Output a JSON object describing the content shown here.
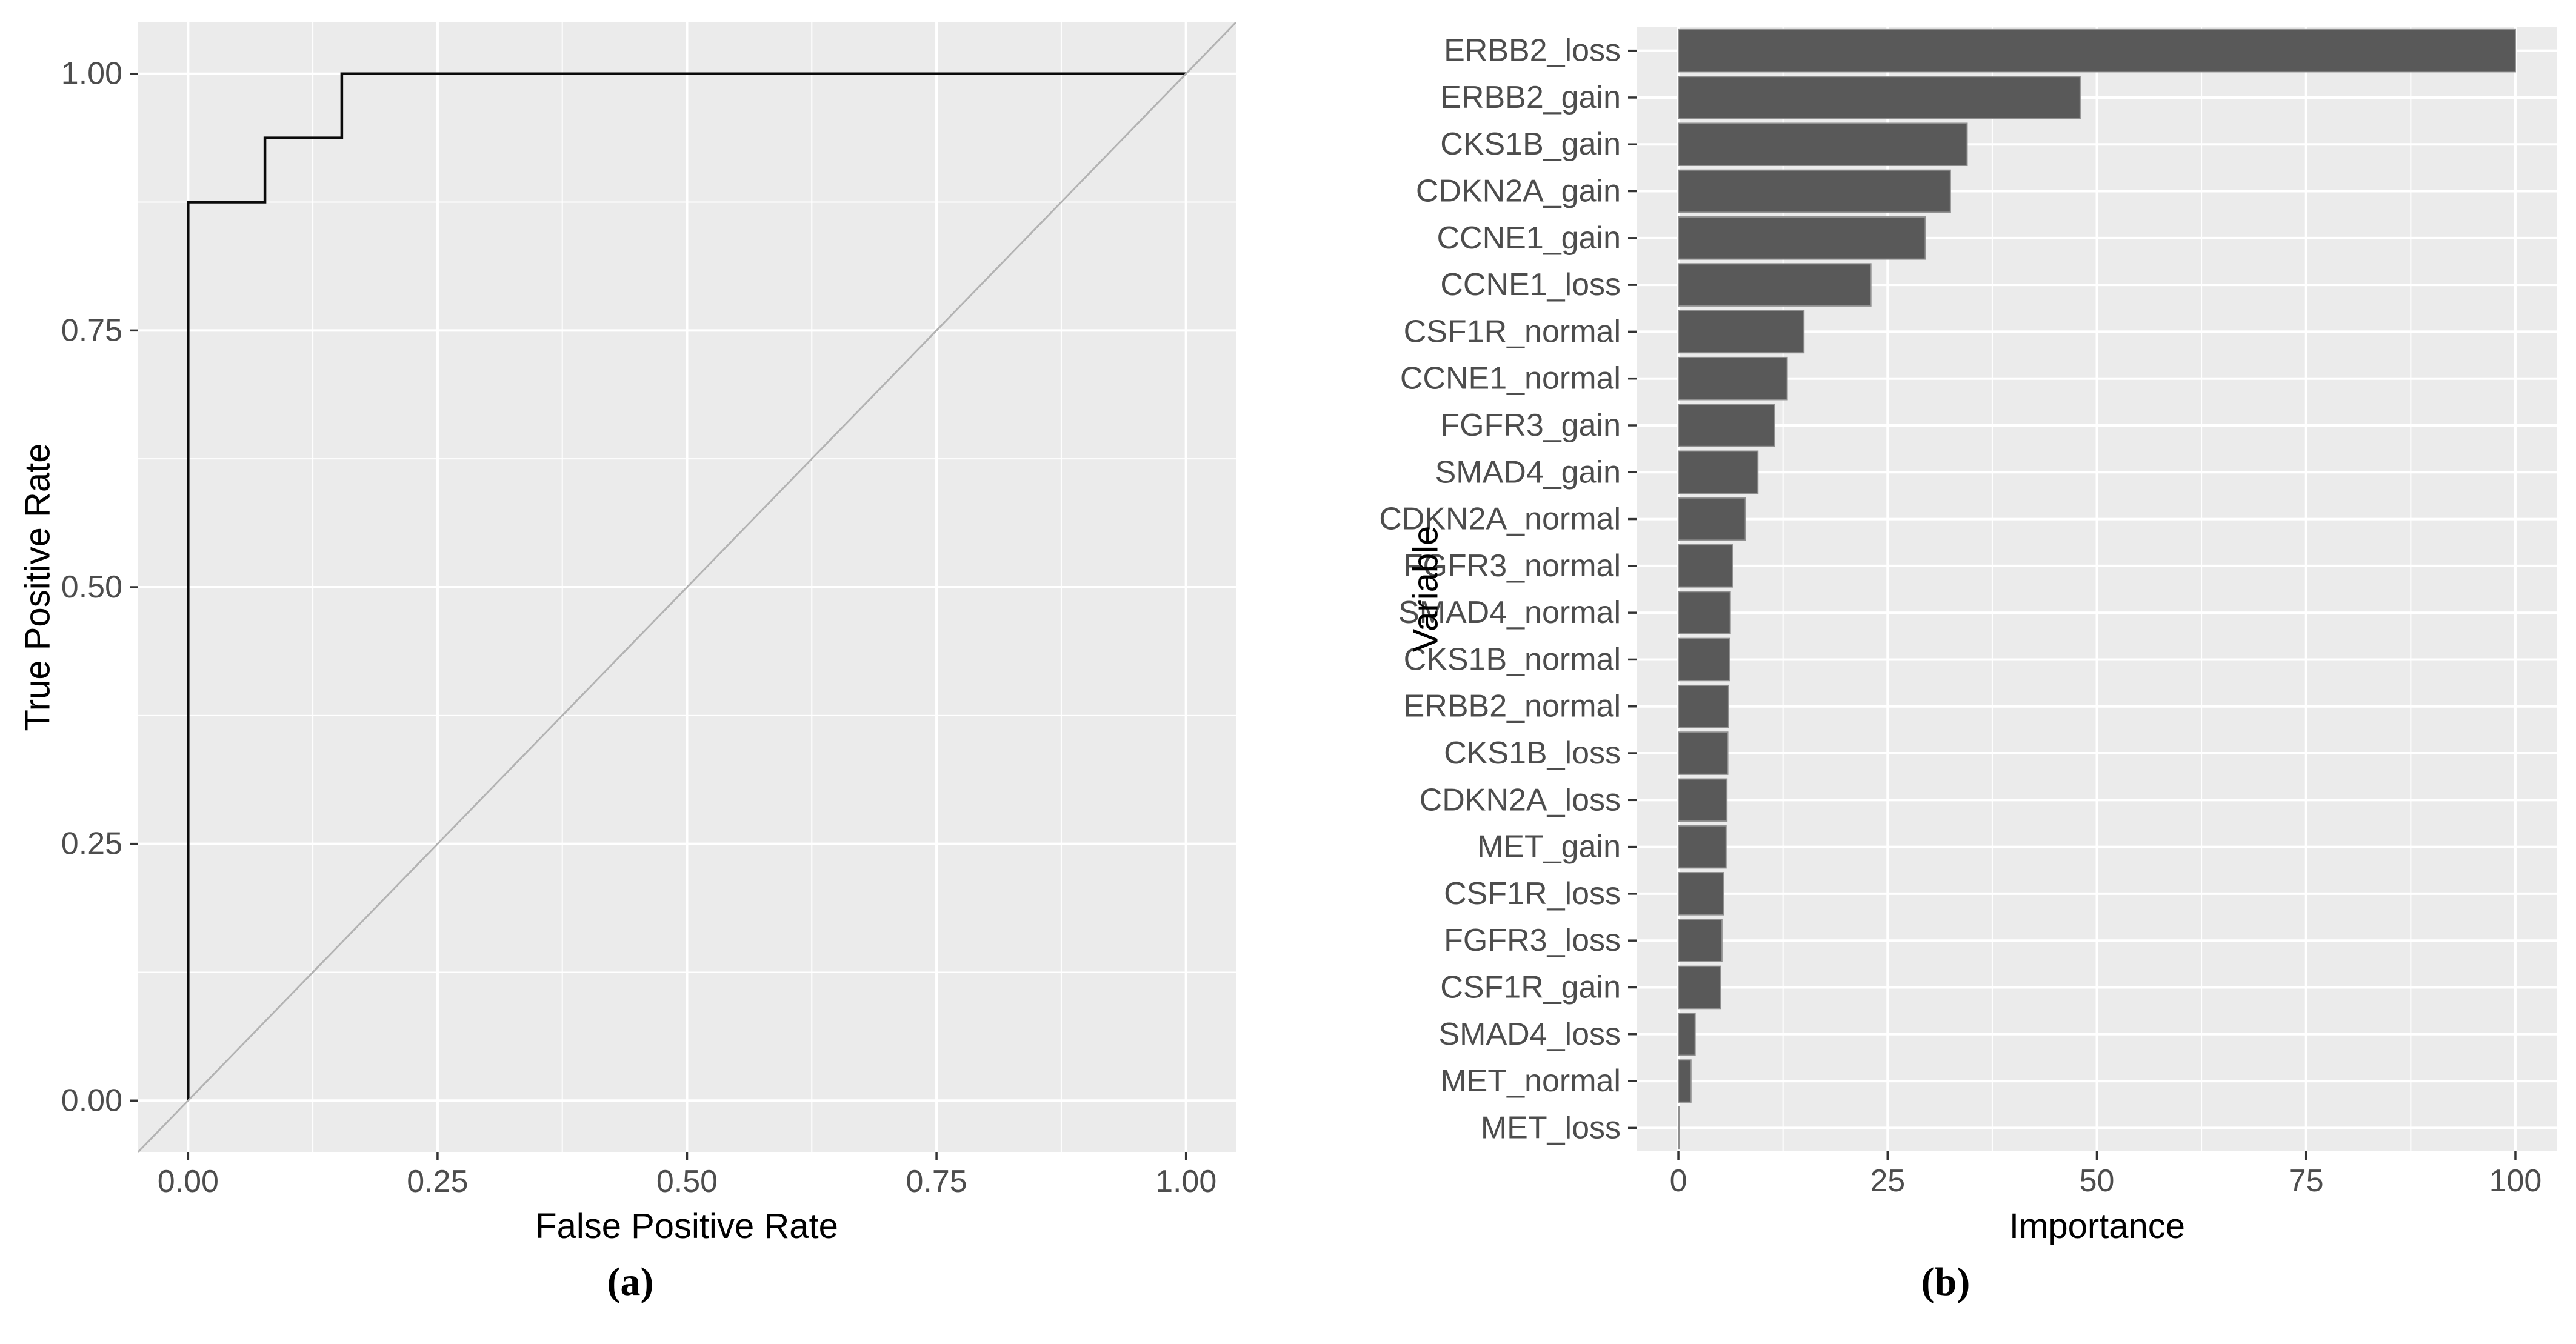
{
  "figure": {
    "caption_a": "(a)",
    "caption_b": "(b)"
  },
  "colors": {
    "panel_bg": "#EBEBEB",
    "grid": "#FFFFFF",
    "bar_fill": "#595959",
    "bar_stroke": "#8F8F8F",
    "roc_line": "#0A0A0A",
    "diagonal_line": "#B3B3B3",
    "tick_mark": "#333333",
    "tick_label": "#4D4D4D",
    "axis_title": "#000000"
  },
  "chart_data": [
    {
      "id": "roc",
      "type": "line",
      "caption": "(a)",
      "xlabel": "False Positive Rate",
      "ylabel": "True Positive Rate",
      "xlim": [
        0,
        1
      ],
      "ylim": [
        0,
        1
      ],
      "expansion": 0.05,
      "grid": "major+minor",
      "legend": "none",
      "x_ticks": {
        "values": [
          0,
          0.25,
          0.5,
          0.75,
          1
        ],
        "labels": [
          "0.00",
          "0.25",
          "0.50",
          "0.75",
          "1.00"
        ]
      },
      "y_ticks": {
        "values": [
          0,
          0.25,
          0.5,
          0.75,
          1
        ],
        "labels": [
          "0.00",
          "0.25",
          "0.50",
          "0.75",
          "1.00"
        ]
      },
      "series": [
        {
          "name": "roc-curve",
          "points": [
            [
              0,
              0
            ],
            [
              0,
              0.875
            ],
            [
              0.077,
              0.875
            ],
            [
              0.077,
              0.9375
            ],
            [
              0.154,
              0.9375
            ],
            [
              0.154,
              1.0
            ],
            [
              1.0,
              1.0
            ]
          ]
        },
        {
          "name": "chance-diagonal",
          "diagonal": true,
          "points": []
        }
      ]
    },
    {
      "id": "importance",
      "type": "bar",
      "orientation": "horizontal",
      "caption": "(b)",
      "xlabel": "Importance",
      "ylabel": "Variable",
      "xlim": [
        0,
        100
      ],
      "expansion": 0.05,
      "bar_width_ratio": 0.9,
      "grid": "major+minor-x, major-y",
      "legend": "none",
      "x_ticks": {
        "values": [
          0,
          25,
          50,
          75,
          100
        ],
        "labels": [
          "0",
          "25",
          "50",
          "75",
          "100"
        ]
      },
      "categories": [
        "ERBB2_loss",
        "ERBB2_gain",
        "CKS1B_gain",
        "CDKN2A_gain",
        "CCNE1_gain",
        "CCNE1_loss",
        "CSF1R_normal",
        "CCNE1_normal",
        "FGFR3_gain",
        "SMAD4_gain",
        "CDKN2A_normal",
        "FGFR3_normal",
        "SMAD4_normal",
        "CKS1B_normal",
        "ERBB2_normal",
        "CKS1B_loss",
        "CDKN2A_loss",
        "MET_gain",
        "CSF1R_loss",
        "FGFR3_loss",
        "CSF1R_gain",
        "SMAD4_loss",
        "MET_normal",
        "MET_loss"
      ],
      "values": [
        100,
        48,
        34.5,
        32.5,
        29.5,
        23,
        15,
        13,
        11.5,
        9.5,
        8,
        6.5,
        6.2,
        6.1,
        6.0,
        5.9,
        5.8,
        5.7,
        5.4,
        5.2,
        5.0,
        2.0,
        1.5,
        0.1
      ]
    }
  ]
}
